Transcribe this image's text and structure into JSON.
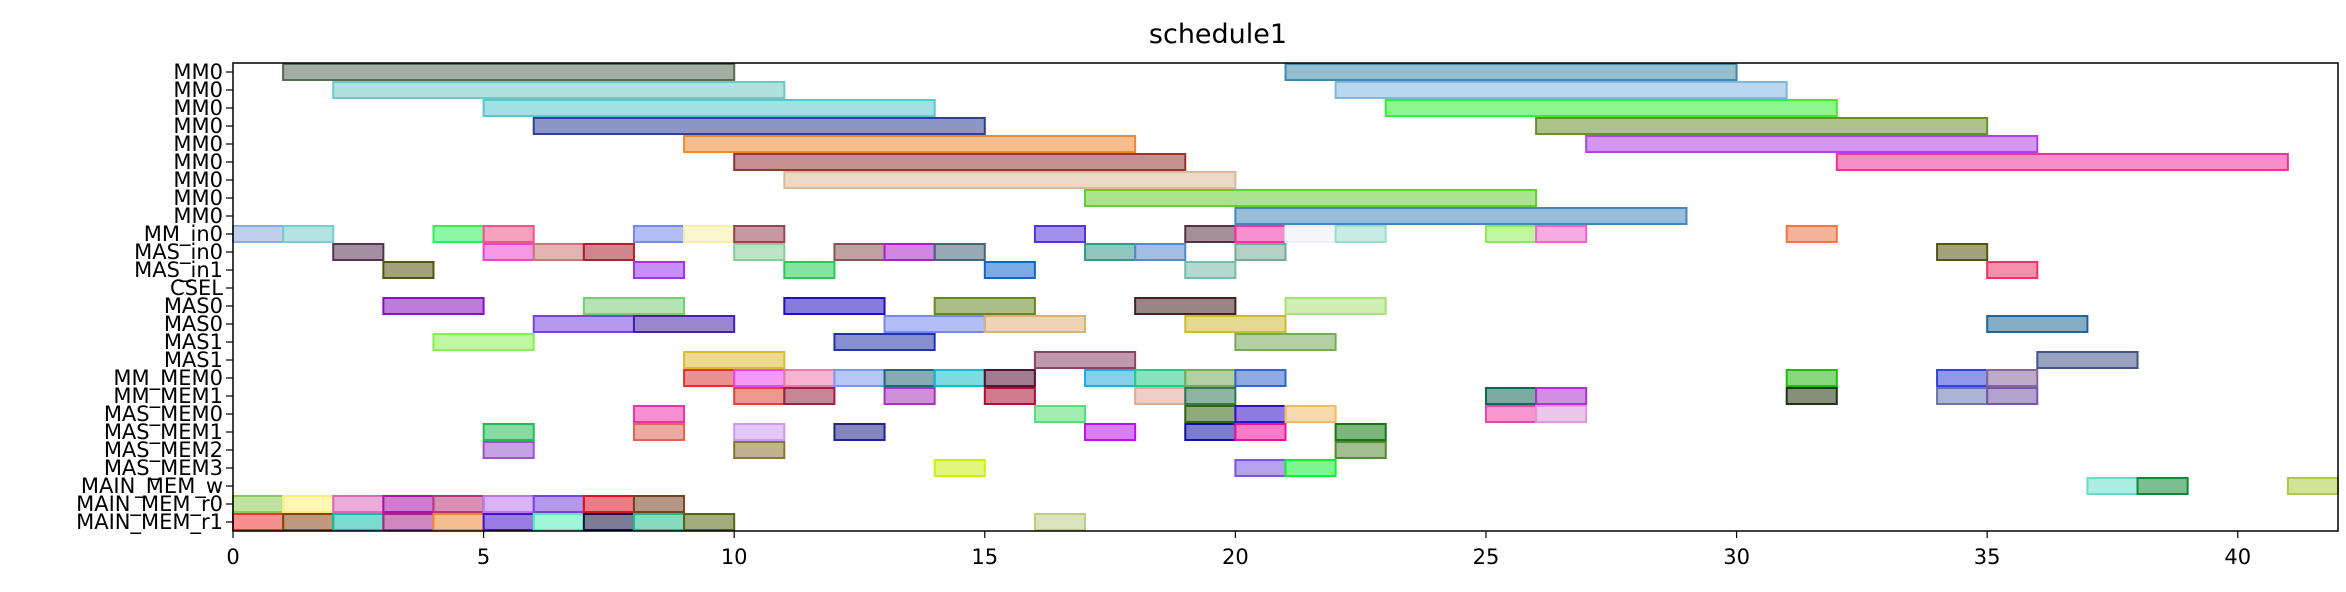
{
  "chart_data": {
    "type": "gantt",
    "title": "schedule1",
    "xlim": [
      0,
      42
    ],
    "xticks": [
      0,
      5,
      10,
      15,
      20,
      25,
      30,
      35,
      40
    ],
    "resources": [
      "MM0",
      "MM0",
      "MM0",
      "MM0",
      "MM0",
      "MM0",
      "MM0",
      "MM0",
      "MM0",
      "MM_in0",
      "MAS_in0",
      "MAS_in1",
      "CSEL",
      "MAS0",
      "MAS0",
      "MAS1",
      "MAS1",
      "MM_MEM0",
      "MM_MEM1",
      "MAS_MEM0",
      "MAS_MEM1",
      "MAS_MEM2",
      "MAS_MEM3",
      "MAIN_MEM_w",
      "MAIN_MEM_r0",
      "MAIN_MEM_r1"
    ],
    "tasks": [
      {
        "row": 0,
        "start": 1,
        "end": 10,
        "color": "#556b55"
      },
      {
        "row": 0,
        "start": 21,
        "end": 30,
        "color": "#3e89a8"
      },
      {
        "row": 1,
        "start": 2,
        "end": 11,
        "color": "#6ec9c4"
      },
      {
        "row": 1,
        "start": 22,
        "end": 31,
        "color": "#7fb6e0"
      },
      {
        "row": 2,
        "start": 5,
        "end": 14,
        "color": "#55c8cc"
      },
      {
        "row": 2,
        "start": 23,
        "end": 32,
        "color": "#33ee33"
      },
      {
        "row": 3,
        "start": 6,
        "end": 15,
        "color": "#2f3f99"
      },
      {
        "row": 3,
        "start": 26,
        "end": 35,
        "color": "#6a8f2a"
      },
      {
        "row": 4,
        "start": 9,
        "end": 18,
        "color": "#ee8833"
      },
      {
        "row": 4,
        "start": 27,
        "end": 36,
        "color": "#b340e8"
      },
      {
        "row": 5,
        "start": 10,
        "end": 19,
        "color": "#993333"
      },
      {
        "row": 5,
        "start": 32,
        "end": 41,
        "color": "#ee3399"
      },
      {
        "row": 6,
        "start": 11,
        "end": 20,
        "color": "#dbb896"
      },
      {
        "row": 7,
        "start": 17,
        "end": 26,
        "color": "#66cc33"
      },
      {
        "row": 8,
        "start": 20,
        "end": 29,
        "color": "#4488bb"
      },
      {
        "row": 9,
        "start": 0,
        "end": 1,
        "color": "#88aadd"
      },
      {
        "row": 9,
        "start": 1,
        "end": 2,
        "color": "#77cccc"
      },
      {
        "row": 9,
        "start": 4,
        "end": 5,
        "color": "#33ee55"
      },
      {
        "row": 9,
        "start": 5,
        "end": 6,
        "color": "#ee5588"
      },
      {
        "row": 9,
        "start": 8,
        "end": 9,
        "color": "#7788ee"
      },
      {
        "row": 9,
        "start": 9,
        "end": 10,
        "color": "#f5f0a8"
      },
      {
        "row": 9,
        "start": 10,
        "end": 11,
        "color": "#994455"
      },
      {
        "row": 9,
        "start": 16,
        "end": 17,
        "color": "#5533dd"
      },
      {
        "row": 9,
        "start": 19,
        "end": 20,
        "color": "#553344"
      },
      {
        "row": 9,
        "start": 20,
        "end": 21,
        "color": "#ee33aa"
      },
      {
        "row": 9,
        "start": 21,
        "end": 22,
        "color": "#eeeef8"
      },
      {
        "row": 9,
        "start": 22,
        "end": 23,
        "color": "#99ddcc"
      },
      {
        "row": 9,
        "start": 25,
        "end": 26,
        "color": "#88ee55"
      },
      {
        "row": 9,
        "start": 26,
        "end": 27,
        "color": "#ee66cc"
      },
      {
        "row": 9,
        "start": 31,
        "end": 32,
        "color": "#ee7744"
      },
      {
        "row": 10,
        "start": 2,
        "end": 3,
        "color": "#553355"
      },
      {
        "row": 10,
        "start": 5,
        "end": 6,
        "color": "#ee44cc"
      },
      {
        "row": 10,
        "start": 6,
        "end": 7,
        "color": "#cc7777"
      },
      {
        "row": 10,
        "start": 7,
        "end": 8,
        "color": "#aa2233"
      },
      {
        "row": 10,
        "start": 10,
        "end": 11,
        "color": "#88cc99"
      },
      {
        "row": 10,
        "start": 12,
        "end": 13,
        "color": "#885555"
      },
      {
        "row": 10,
        "start": 13,
        "end": 14,
        "color": "#aa22cc"
      },
      {
        "row": 10,
        "start": 14,
        "end": 15,
        "color": "#446677"
      },
      {
        "row": 10,
        "start": 17,
        "end": 18,
        "color": "#339988"
      },
      {
        "row": 10,
        "start": 18,
        "end": 19,
        "color": "#5588cc"
      },
      {
        "row": 10,
        "start": 20,
        "end": 21,
        "color": "#77aa99"
      },
      {
        "row": 10,
        "start": 34,
        "end": 35,
        "color": "#555511"
      },
      {
        "row": 11,
        "start": 3,
        "end": 4,
        "color": "#555511"
      },
      {
        "row": 11,
        "start": 8,
        "end": 9,
        "color": "#9933ee"
      },
      {
        "row": 11,
        "start": 11,
        "end": 12,
        "color": "#22cc55"
      },
      {
        "row": 11,
        "start": 15,
        "end": 16,
        "color": "#1166cc"
      },
      {
        "row": 11,
        "start": 19,
        "end": 20,
        "color": "#77bbaa"
      },
      {
        "row": 11,
        "start": 35,
        "end": 36,
        "color": "#ee3366"
      },
      {
        "row": 13,
        "start": 3,
        "end": 5,
        "color": "#8811bb"
      },
      {
        "row": 13,
        "start": 7,
        "end": 9,
        "color": "#77cc77"
      },
      {
        "row": 13,
        "start": 11,
        "end": 13,
        "color": "#2211bb"
      },
      {
        "row": 13,
        "start": 14,
        "end": 16,
        "color": "#668822"
      },
      {
        "row": 13,
        "start": 18,
        "end": 20,
        "color": "#442222"
      },
      {
        "row": 13,
        "start": 21,
        "end": 23,
        "color": "#aae077"
      },
      {
        "row": 14,
        "start": 6,
        "end": 8,
        "color": "#7744dd"
      },
      {
        "row": 14,
        "start": 8,
        "end": 10,
        "color": "#4422aa"
      },
      {
        "row": 14,
        "start": 13,
        "end": 15,
        "color": "#7788ee"
      },
      {
        "row": 14,
        "start": 15,
        "end": 17,
        "color": "#ddb077"
      },
      {
        "row": 14,
        "start": 19,
        "end": 21,
        "color": "#ccbb33"
      },
      {
        "row": 14,
        "start": 35,
        "end": 37,
        "color": "#226699"
      },
      {
        "row": 15,
        "start": 4,
        "end": 6,
        "color": "#88ee55"
      },
      {
        "row": 15,
        "start": 12,
        "end": 14,
        "color": "#2233aa"
      },
      {
        "row": 15,
        "start": 20,
        "end": 22,
        "color": "#77aa55"
      },
      {
        "row": 16,
        "start": 9,
        "end": 11,
        "color": "#ddbb33"
      },
      {
        "row": 16,
        "start": 16,
        "end": 18,
        "color": "#884466"
      },
      {
        "row": 16,
        "start": 36,
        "end": 38,
        "color": "#445588"
      },
      {
        "row": 17,
        "start": 9,
        "end": 10,
        "color": "#dd3333"
      },
      {
        "row": 17,
        "start": 10,
        "end": 11,
        "color": "#ee44ee"
      },
      {
        "row": 17,
        "start": 11,
        "end": 12,
        "color": "#ee77aa"
      },
      {
        "row": 17,
        "start": 12,
        "end": 13,
        "color": "#7799ee"
      },
      {
        "row": 17,
        "start": 13,
        "end": 14,
        "color": "#226677"
      },
      {
        "row": 17,
        "start": 14,
        "end": 15,
        "color": "#11bbcc"
      },
      {
        "row": 17,
        "start": 15,
        "end": 16,
        "color": "#551133"
      },
      {
        "row": 17,
        "start": 17,
        "end": 18,
        "color": "#22aadd"
      },
      {
        "row": 17,
        "start": 18,
        "end": 19,
        "color": "#22cc88"
      },
      {
        "row": 17,
        "start": 19,
        "end": 20,
        "color": "#77aa55"
      },
      {
        "row": 17,
        "start": 20,
        "end": 21,
        "color": "#3366cc"
      },
      {
        "row": 17,
        "start": 31,
        "end": 32,
        "color": "#22bb11"
      },
      {
        "row": 17,
        "start": 34,
        "end": 35,
        "color": "#3344dd"
      },
      {
        "row": 17,
        "start": 35,
        "end": 36,
        "color": "#886699"
      },
      {
        "row": 18,
        "start": 10,
        "end": 11,
        "color": "#dd4433"
      },
      {
        "row": 18,
        "start": 11,
        "end": 12,
        "color": "#992244"
      },
      {
        "row": 18,
        "start": 13,
        "end": 14,
        "color": "#aa33bb"
      },
      {
        "row": 18,
        "start": 15,
        "end": 16,
        "color": "#aa1133"
      },
      {
        "row": 18,
        "start": 18,
        "end": 19,
        "color": "#ddaa99"
      },
      {
        "row": 18,
        "start": 19,
        "end": 20,
        "color": "#337755"
      },
      {
        "row": 18,
        "start": 25,
        "end": 26,
        "color": "#116655"
      },
      {
        "row": 18,
        "start": 26,
        "end": 27,
        "color": "#aa33cc"
      },
      {
        "row": 18,
        "start": 31,
        "end": 32,
        "color": "#223311"
      },
      {
        "row": 18,
        "start": 34,
        "end": 35,
        "color": "#6677aa"
      },
      {
        "row": 18,
        "start": 35,
        "end": 36,
        "color": "#7755aa"
      },
      {
        "row": 19,
        "start": 8,
        "end": 9,
        "color": "#ee33aa"
      },
      {
        "row": 19,
        "start": 16,
        "end": 17,
        "color": "#55dd77"
      },
      {
        "row": 19,
        "start": 19,
        "end": 20,
        "color": "#336611"
      },
      {
        "row": 19,
        "start": 20,
        "end": 21,
        "color": "#3311cc"
      },
      {
        "row": 19,
        "start": 21,
        "end": 22,
        "color": "#eebb66"
      },
      {
        "row": 19,
        "start": 25,
        "end": 26,
        "color": "#ee44aa"
      },
      {
        "row": 19,
        "start": 26,
        "end": 27,
        "color": "#dd99dd"
      },
      {
        "row": 20,
        "start": 5,
        "end": 6,
        "color": "#22bb55"
      },
      {
        "row": 20,
        "start": 8,
        "end": 9,
        "color": "#dd6655"
      },
      {
        "row": 20,
        "start": 10,
        "end": 11,
        "color": "#cc99ee"
      },
      {
        "row": 20,
        "start": 12,
        "end": 13,
        "color": "#222288"
      },
      {
        "row": 20,
        "start": 17,
        "end": 18,
        "color": "#bb11ee"
      },
      {
        "row": 20,
        "start": 19,
        "end": 20,
        "color": "#1111aa"
      },
      {
        "row": 20,
        "start": 20,
        "end": 21,
        "color": "#ee1199"
      },
      {
        "row": 20,
        "start": 22,
        "end": 23,
        "color": "#117711"
      },
      {
        "row": 21,
        "start": 5,
        "end": 6,
        "color": "#9955cc"
      },
      {
        "row": 21,
        "start": 10,
        "end": 11,
        "color": "#887733"
      },
      {
        "row": 21,
        "start": 22,
        "end": 23,
        "color": "#558833"
      },
      {
        "row": 22,
        "start": 14,
        "end": 15,
        "color": "#ccee11"
      },
      {
        "row": 22,
        "start": 20,
        "end": 21,
        "color": "#7755dd"
      },
      {
        "row": 22,
        "start": 21,
        "end": 22,
        "color": "#11ee33"
      },
      {
        "row": 23,
        "start": 37,
        "end": 38,
        "color": "#66ddcc"
      },
      {
        "row": 23,
        "start": 38,
        "end": 39,
        "color": "#118833"
      },
      {
        "row": 23,
        "start": 41,
        "end": 42,
        "color": "#aacc44"
      },
      {
        "row": 24,
        "start": 0,
        "end": 1,
        "color": "#88cc55"
      },
      {
        "row": 24,
        "start": 1,
        "end": 2,
        "color": "#ffee77"
      },
      {
        "row": 24,
        "start": 2,
        "end": 3,
        "color": "#dd66bb"
      },
      {
        "row": 24,
        "start": 3,
        "end": 4,
        "color": "#aa11aa"
      },
      {
        "row": 24,
        "start": 4,
        "end": 5,
        "color": "#bb3377"
      },
      {
        "row": 24,
        "start": 5,
        "end": 6,
        "color": "#bb77ee"
      },
      {
        "row": 24,
        "start": 6,
        "end": 7,
        "color": "#7744dd"
      },
      {
        "row": 24,
        "start": 7,
        "end": 8,
        "color": "#dd1122"
      },
      {
        "row": 24,
        "start": 8,
        "end": 9,
        "color": "#774422"
      },
      {
        "row": 25,
        "start": 0,
        "end": 1,
        "color": "#ee3333"
      },
      {
        "row": 25,
        "start": 1,
        "end": 2,
        "color": "#884411"
      },
      {
        "row": 25,
        "start": 2,
        "end": 3,
        "color": "#11bbaa"
      },
      {
        "row": 25,
        "start": 3,
        "end": 4,
        "color": "#aa2288"
      },
      {
        "row": 25,
        "start": 4,
        "end": 5,
        "color": "#ee8833"
      },
      {
        "row": 25,
        "start": 5,
        "end": 6,
        "color": "#4411cc"
      },
      {
        "row": 25,
        "start": 6,
        "end": 7,
        "color": "#55eebb"
      },
      {
        "row": 25,
        "start": 7,
        "end": 8,
        "color": "#111144"
      },
      {
        "row": 25,
        "start": 8,
        "end": 9,
        "color": "#22bb88"
      },
      {
        "row": 25,
        "start": 9,
        "end": 10,
        "color": "#556611"
      },
      {
        "row": 25,
        "start": 16,
        "end": 17,
        "color": "#bbcc88"
      }
    ]
  }
}
